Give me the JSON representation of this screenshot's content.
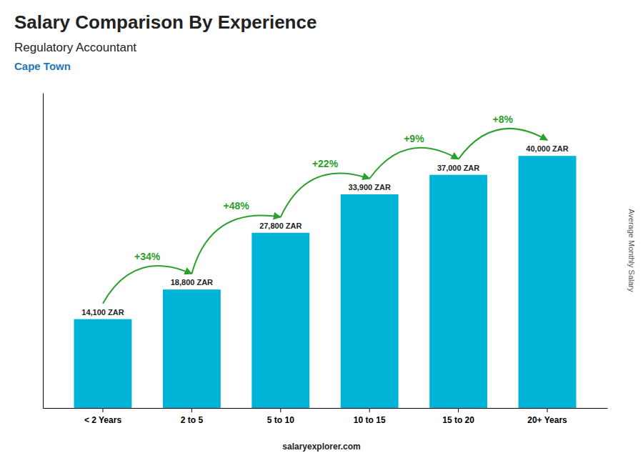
{
  "chart_data": {
    "type": "bar",
    "title": "Salary Comparison By Experience",
    "subtitle": [
      "Regulatory Accountant",
      "Cape Town"
    ],
    "categories": [
      "< 2 Years",
      "2 to 5",
      "5 to 10",
      "10 to 15",
      "15 to 20",
      "20+ Years"
    ],
    "values": [
      14100,
      18800,
      27800,
      33900,
      37000,
      40000
    ],
    "value_labels": [
      "14,100 ZAR",
      "18,800 ZAR",
      "27,800 ZAR",
      "33,900 ZAR",
      "37,000 ZAR",
      "40,000 ZAR"
    ],
    "data_labels": true,
    "color": "#00b4d8",
    "ylim": [
      0,
      50000
    ],
    "tick_labels": "x",
    "grid": false,
    "y_label": "Average Monthly Salary",
    "annotations": [
      "+34%",
      "+48%",
      "+22%",
      "+9%",
      "+8%"
    ],
    "footer": "salaryexplorer.com"
  }
}
